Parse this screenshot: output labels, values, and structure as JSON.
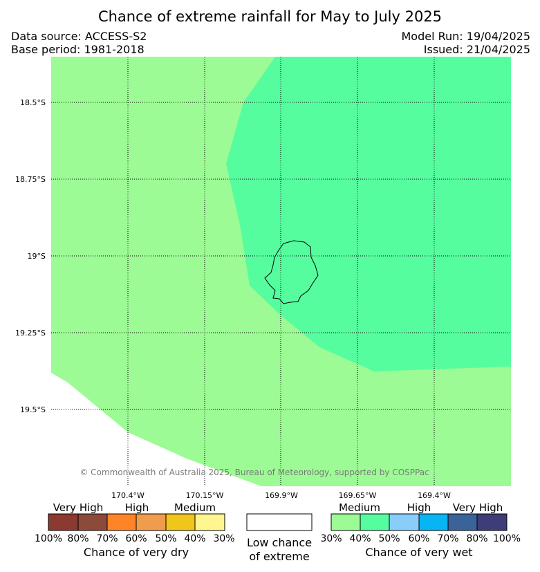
{
  "title": "Chance of extreme rainfall for May to July 2025",
  "data_source": "Data source: ACCESS-S2",
  "base_period": "Base period: 1981-2018",
  "model_run": "Model Run: 19/04/2025",
  "issued": "Issued: 21/04/2025",
  "copyright": "© Commonwealth of Australia 2025, Bureau of Meteorology, supported by COSPPac",
  "lat_labels": [
    "18.5°S",
    "18.75°S",
    "19°S",
    "19.25°S",
    "19.5°S"
  ],
  "lon_labels": [
    "170.4°W",
    "170.15°W",
    "169.9°W",
    "169.65°W",
    "169.4°W"
  ],
  "legend": {
    "dry": {
      "colors": [
        "#8b3a2f",
        "#8c4a3a",
        "#ff8427",
        "#ef9d4c",
        "#f0c61a",
        "#fff68f"
      ],
      "levels": [
        "Very High",
        "High",
        "Medium"
      ],
      "ticks": [
        "100%",
        "80%",
        "70%",
        "60%",
        "50%",
        "40%",
        "30%"
      ],
      "caption": "Chance of very dry"
    },
    "low": {
      "color": "#ffffff",
      "caption_line1": "Low chance",
      "caption_line2": "of extreme"
    },
    "wet": {
      "colors": [
        "#9cfb94",
        "#56fd9f",
        "#89cdfb",
        "#06b5f2",
        "#3a6399",
        "#3e3d77"
      ],
      "levels": [
        "Medium",
        "High",
        "Very High"
      ],
      "ticks": [
        "30%",
        "40%",
        "50%",
        "60%",
        "70%",
        "80%",
        "100%"
      ],
      "caption": "Chance of very wet"
    }
  },
  "map_colors": {
    "medium_wet": "#9cfb94",
    "high_wet": "#56fd9f",
    "island_outline": "#000000"
  }
}
